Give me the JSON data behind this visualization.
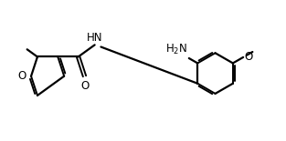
{
  "background_color": "#ffffff",
  "line_color": "#000000",
  "line_width": 1.6,
  "font_size": 8.5,
  "figsize": [
    3.13,
    1.55
  ],
  "dpi": 100,
  "xlim": [
    0,
    10
  ],
  "ylim": [
    0,
    5
  ]
}
